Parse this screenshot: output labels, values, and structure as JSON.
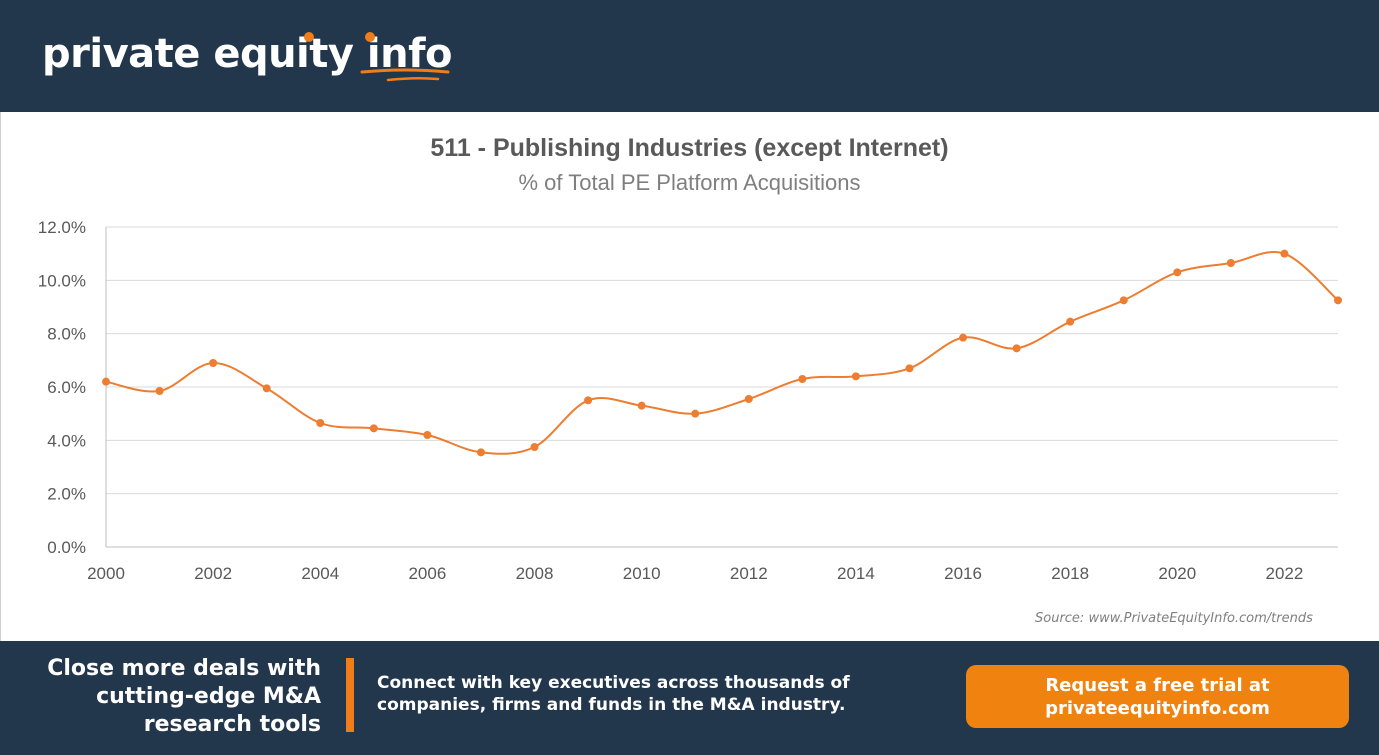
{
  "brand": {
    "logo_main": "private equity ",
    "logo_accent": "info",
    "accent_color": "#f07d1a",
    "header_color": "#22364c"
  },
  "chart_data": {
    "type": "line",
    "title": "511 - Publishing Industries (except Internet)",
    "subtitle": "% of Total PE Platform Acquisitions",
    "x": [
      2000,
      2001,
      2002,
      2003,
      2004,
      2005,
      2006,
      2007,
      2008,
      2009,
      2010,
      2011,
      2012,
      2013,
      2014,
      2015,
      2016,
      2017,
      2018,
      2019,
      2020,
      2021,
      2022,
      2023
    ],
    "series": [
      {
        "values": [
          6.2,
          5.85,
          6.9,
          5.95,
          4.65,
          4.45,
          4.2,
          3.55,
          3.75,
          5.5,
          5.3,
          5.0,
          5.55,
          6.3,
          6.4,
          6.7,
          7.85,
          7.45,
          8.45,
          9.25,
          10.3,
          10.65,
          11.0,
          9.25
        ],
        "color": "#ed7d31"
      }
    ],
    "ylim": [
      0,
      12
    ],
    "yticks": [
      "0.0%",
      "2.0%",
      "4.0%",
      "6.0%",
      "8.0%",
      "10.0%",
      "12.0%"
    ],
    "xticks": [
      "2000",
      "2002",
      "2004",
      "2006",
      "2008",
      "2010",
      "2012",
      "2014",
      "2016",
      "2018",
      "2020",
      "2022"
    ],
    "grid": true,
    "legend": "none"
  },
  "source": "Source: www.PrivateEquityInfo.com/trends",
  "footer": {
    "tagline": [
      "Close more deals with",
      "cutting-edge M&A",
      "research tools"
    ],
    "connect": [
      "Connect with key executives across thousands of",
      "companies, firms and funds in the M&A industry."
    ],
    "cta": [
      "Request a free trial at",
      "privateequityinfo.com"
    ]
  }
}
